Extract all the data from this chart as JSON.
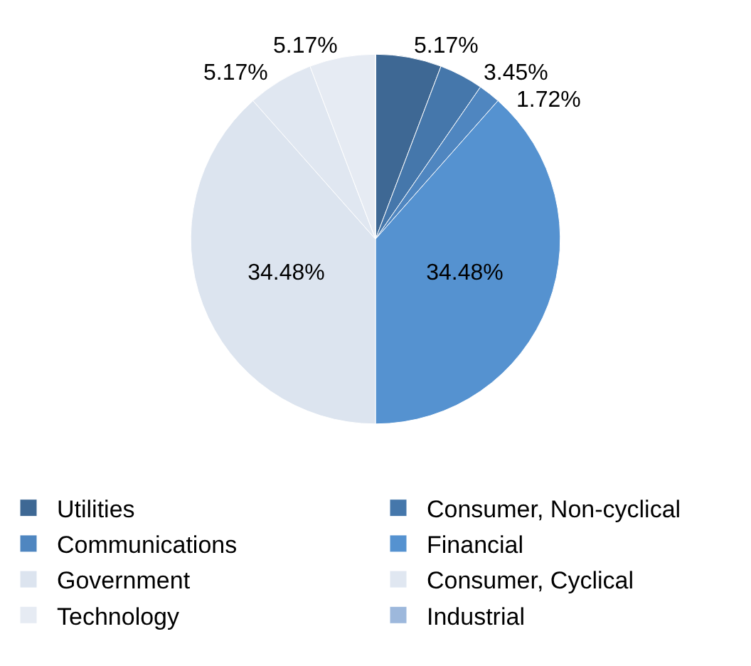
{
  "chart_data": {
    "type": "pie",
    "categories": [
      "Utilities",
      "Consumer, Non-cyclical",
      "Communications",
      "Financial",
      "Government",
      "Consumer, Cyclical",
      "Technology",
      "Industrial"
    ],
    "values": [
      5.17,
      3.45,
      1.72,
      34.48,
      34.48,
      5.17,
      5.17,
      0
    ],
    "value_labels": [
      "5.17%",
      "3.45%",
      "1.72%",
      "34.48%",
      "34.48%",
      "5.17%",
      "5.17%",
      null
    ],
    "colors": [
      "#3e6894",
      "#4577ab",
      "#4f86c0",
      "#5592d0",
      "#dce4ef",
      "#e0e7f1",
      "#e6ebf3",
      "#9db8dc"
    ],
    "legend": "bottom"
  }
}
